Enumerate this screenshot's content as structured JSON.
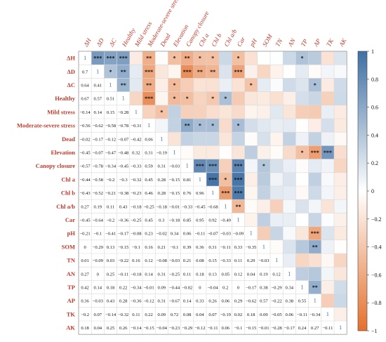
{
  "chart_data": {
    "type": "heatmap",
    "title": "",
    "variables": [
      "ΔH",
      "ΔD",
      "ΔC",
      "Healthy",
      "Mild stress",
      "Moderate-severe stress",
      "Dead",
      "Elevation",
      "Canopy closure",
      "Chl a",
      "Chl b",
      "Chl a/b",
      "Car",
      "pH",
      "SOM",
      "TN",
      "AN",
      "TP",
      "AP",
      "TK",
      "AK"
    ],
    "column_labels": [
      "ΔH",
      "ΔD",
      "ΔC",
      "Healthy",
      "Mild stress",
      "Moderate-severe stress",
      "Dead",
      "Elevation",
      "Canopy closure",
      "Chl a",
      "Chl b",
      "Chl a/b",
      "Car",
      "pH",
      "SOM",
      "TN",
      "AN",
      "TP",
      "AP",
      "TK",
      "AK"
    ],
    "row_labels": [
      "ΔH",
      "ΔD",
      "ΔC",
      "Healthy",
      "Mild stress",
      "Moderate-severe stress",
      "Dead",
      "Elevation",
      "Canopy closure",
      "Chl a",
      "Chl b",
      "Chl a/b",
      "Car",
      "pH",
      "SOM",
      "TN",
      "AN",
      "TP",
      "AP",
      "TK",
      "AK"
    ],
    "lower_triangle": [
      [
        "1"
      ],
      [
        "0.7",
        "1"
      ],
      [
        "0.64",
        "0.41",
        "1"
      ],
      [
        "0.67",
        "0.57",
        "0.51",
        "1"
      ],
      [
        "−0.14",
        "0.14",
        "0.15",
        "−0.28",
        "1"
      ],
      [
        "−0.56",
        "−0.62",
        "−0.58",
        "−0.78",
        "−0.31",
        "1"
      ],
      [
        "−0.02",
        "−0.17",
        "−0.12",
        "−0.07",
        "−0.42",
        "0.06",
        "1"
      ],
      [
        "−0.45",
        "−0.07",
        "−0.47",
        "−0.48",
        "0.32",
        "0.31",
        "−0.19",
        "1"
      ],
      [
        "−0.57",
        "−0.78",
        "−0.34",
        "−0.45",
        "−0.33",
        "0.59",
        "0.31",
        "−0.03",
        "1"
      ],
      [
        "−0.44",
        "−0.58",
        "−0.2",
        "−0.3",
        "−0.32",
        "0.45",
        "0.28",
        "−0.15",
        "0.81",
        "1"
      ],
      [
        "−0.43",
        "−0.52",
        "−0.21",
        "−0.38",
        "−0.23",
        "0.46",
        "0.28",
        "−0.15",
        "0.76",
        "0.96",
        "1"
      ],
      [
        "0.27",
        "0.19",
        "0.11",
        "0.43",
        "−0.18",
        "−0.25",
        "−0.18",
        "−0.01",
        "−0.33",
        "−0.45",
        "−0.68",
        "1"
      ],
      [
        "−0.45",
        "−0.64",
        "−0.2",
        "−0.36",
        "−0.25",
        "0.45",
        "0.3",
        "−0.18",
        "0.85",
        "0.95",
        "0.92",
        "−0.49",
        "1"
      ],
      [
        "−0.21",
        "−0.1",
        "−0.41",
        "−0.17",
        "−0.08",
        "0.23",
        "−0.02",
        "0.34",
        "0.06",
        "−0.11",
        "−0.07",
        "−0.03",
        "−0.09",
        "1"
      ],
      [
        "0",
        "−0.29",
        "0.13",
        "−0.15",
        "−0.1",
        "0.16",
        "0.21",
        "−0.1",
        "0.39",
        "0.36",
        "0.31",
        "−0.11",
        "0.33",
        "−0.35",
        "1"
      ],
      [
        "0.01",
        "−0.09",
        "0.03",
        "−0.22",
        "0.16",
        "0.12",
        "−0.08",
        "−0.03",
        "0.21",
        "0.08",
        "0.15",
        "−0.33",
        "0.11",
        "0.29",
        "−0.03",
        "1"
      ],
      [
        "0.27",
        "0",
        "0.25",
        "−0.11",
        "−0.18",
        "0.14",
        "0.31",
        "−0.25",
        "0.11",
        "0.18",
        "0.13",
        "0.05",
        "0.12",
        "0.04",
        "0.19",
        "0.12",
        "1"
      ],
      [
        "0.42",
        "0.14",
        "0.18",
        "0.22",
        "−0.34",
        "−0.01",
        "0.09",
        "−0.44",
        "−0.02",
        "0",
        "−0.04",
        "0.2",
        "0",
        "−0.17",
        "0.38",
        "−0.29",
        "0.34",
        "1"
      ],
      [
        "0.36",
        "−0.03",
        "0.43",
        "0.28",
        "−0.36",
        "−0.12",
        "0.31",
        "−0.67",
        "0.14",
        "0.33",
        "0.26",
        "0.06",
        "0.29",
        "−0.62",
        "0.57",
        "−0.22",
        "0.38",
        "0.55",
        "1"
      ],
      [
        "−0.2",
        "0.07",
        "−0.14",
        "−0.32",
        "0.11",
        "0.22",
        "0.09",
        "0.72",
        "0.08",
        "0.04",
        "0.07",
        "−0.19",
        "0.02",
        "0.18",
        "0.09",
        "−0.05",
        "0.06",
        "−0.11",
        "−0.34",
        "1"
      ],
      [
        "0.18",
        "0.04",
        "0.25",
        "0.26",
        "−0.14",
        "−0.15",
        "−0.04",
        "−0.23",
        "−0.29",
        "−0.12",
        "−0.11",
        "0.06",
        "−0.1",
        "−0.15",
        "−0.01",
        "−0.28",
        "−0.17",
        "0.24",
        "0.27",
        "−0.11",
        "1"
      ]
    ],
    "upper_significance": [
      {
        "row": 0,
        "col": 1,
        "mark": "***"
      },
      {
        "row": 0,
        "col": 2,
        "mark": "***"
      },
      {
        "row": 0,
        "col": 3,
        "mark": "***"
      },
      {
        "row": 0,
        "col": 5,
        "mark": "**"
      },
      {
        "row": 0,
        "col": 7,
        "mark": "*"
      },
      {
        "row": 0,
        "col": 8,
        "mark": "**"
      },
      {
        "row": 0,
        "col": 9,
        "mark": "*"
      },
      {
        "row": 0,
        "col": 10,
        "mark": "*"
      },
      {
        "row": 0,
        "col": 12,
        "mark": "*"
      },
      {
        "row": 0,
        "col": 17,
        "mark": "*"
      },
      {
        "row": 1,
        "col": 2,
        "mark": "*"
      },
      {
        "row": 1,
        "col": 3,
        "mark": "**"
      },
      {
        "row": 1,
        "col": 5,
        "mark": "***"
      },
      {
        "row": 1,
        "col": 8,
        "mark": "***"
      },
      {
        "row": 1,
        "col": 9,
        "mark": "**"
      },
      {
        "row": 1,
        "col": 10,
        "mark": "**"
      },
      {
        "row": 1,
        "col": 12,
        "mark": "***"
      },
      {
        "row": 2,
        "col": 3,
        "mark": "**"
      },
      {
        "row": 2,
        "col": 5,
        "mark": "**"
      },
      {
        "row": 2,
        "col": 7,
        "mark": "*"
      },
      {
        "row": 2,
        "col": 13,
        "mark": "*"
      },
      {
        "row": 2,
        "col": 18,
        "mark": "*"
      },
      {
        "row": 3,
        "col": 5,
        "mark": "***"
      },
      {
        "row": 3,
        "col": 7,
        "mark": "*"
      },
      {
        "row": 3,
        "col": 8,
        "mark": "*"
      },
      {
        "row": 3,
        "col": 10,
        "mark": "*"
      },
      {
        "row": 3,
        "col": 11,
        "mark": "*"
      },
      {
        "row": 4,
        "col": 6,
        "mark": "*"
      },
      {
        "row": 5,
        "col": 8,
        "mark": "**"
      },
      {
        "row": 5,
        "col": 9,
        "mark": "*"
      },
      {
        "row": 5,
        "col": 10,
        "mark": "*"
      },
      {
        "row": 5,
        "col": 12,
        "mark": "*"
      },
      {
        "row": 7,
        "col": 17,
        "mark": "*"
      },
      {
        "row": 7,
        "col": 18,
        "mark": "***"
      },
      {
        "row": 7,
        "col": 19,
        "mark": "***"
      },
      {
        "row": 8,
        "col": 9,
        "mark": "***"
      },
      {
        "row": 8,
        "col": 10,
        "mark": "***"
      },
      {
        "row": 8,
        "col": 12,
        "mark": "***"
      },
      {
        "row": 8,
        "col": 14,
        "mark": "*"
      },
      {
        "row": 9,
        "col": 10,
        "mark": "***"
      },
      {
        "row": 9,
        "col": 11,
        "mark": "*"
      },
      {
        "row": 9,
        "col": 12,
        "mark": "***"
      },
      {
        "row": 10,
        "col": 11,
        "mark": "***"
      },
      {
        "row": 10,
        "col": 12,
        "mark": "***"
      },
      {
        "row": 11,
        "col": 12,
        "mark": "**"
      },
      {
        "row": 13,
        "col": 18,
        "mark": "***"
      },
      {
        "row": 14,
        "col": 18,
        "mark": "**"
      },
      {
        "row": 17,
        "col": 18,
        "mark": "**"
      }
    ],
    "colorbar": {
      "ticks": [
        "1",
        "0.8",
        "0.6",
        "0.4",
        "0.2",
        "0",
        "−0.2",
        "−0.4",
        "−0.6",
        "−0.8",
        "−1"
      ],
      "positive_color": "#3f6fa3",
      "zero_color": "#ffffff",
      "negative_color": "#e4702d",
      "vmin": -1,
      "vmax": 1
    }
  }
}
